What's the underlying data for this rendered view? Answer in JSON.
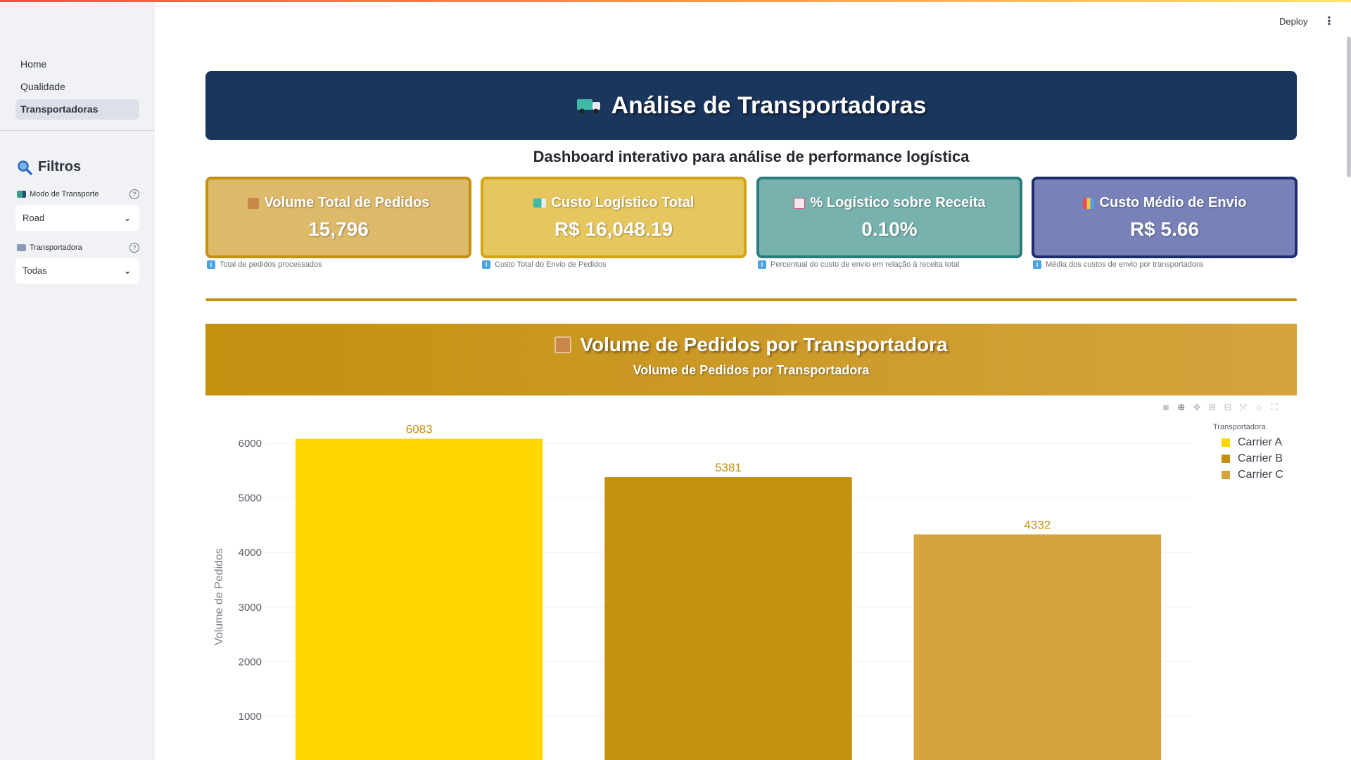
{
  "sidebar": {
    "nav": [
      {
        "label": "Home",
        "active": false
      },
      {
        "label": "Qualidade",
        "active": false
      },
      {
        "label": "Transportadoras",
        "active": true
      }
    ],
    "filters_title": "Filtros",
    "filters": [
      {
        "label": "Modo de Transporte",
        "value": "Road"
      },
      {
        "label": "Transportadora",
        "value": "Todas"
      }
    ]
  },
  "header": {
    "deploy_label": "Deploy"
  },
  "banner": {
    "title": "Análise de Transportadoras"
  },
  "subtitle": "Dashboard interativo para análise de performance logística",
  "kpis": [
    {
      "title": "Volume Total de Pedidos",
      "value": "15,796",
      "note": "Total de pedidos processados",
      "bg": "#ddb96a",
      "border": "#c49010"
    },
    {
      "title": "Custo Logístico Total",
      "value": "R$ 16,048.19",
      "note": "Custo Total do Envio de Pedidos",
      "bg": "#e6c65e",
      "border": "#d4a410"
    },
    {
      "title": "% Logístico sobre Receita",
      "value": "0.10%",
      "note": "Percentual do custo de envio em relação à receita total",
      "bg": "#78b2ae",
      "border": "#2a7d78"
    },
    {
      "title": "Custo Médio de Envio",
      "value": "R$ 5.66",
      "note": "Média dos custos de envio por transportadora",
      "bg": "#7882b8",
      "border": "#1e2d6e"
    }
  ],
  "chart_section": {
    "title": "Volume de Pedidos por Transportadora",
    "subtitle": "Volume de Pedidos por Transportadora"
  },
  "chart_data": {
    "type": "bar",
    "categories": [
      "Carrier A",
      "Carrier B",
      "Carrier C"
    ],
    "values": [
      6083,
      5381,
      4332
    ],
    "colors": [
      "#ffd700",
      "#c49010",
      "#d4a43e"
    ],
    "title": "Volume de Pedidos por Transportadora",
    "xlabel": "",
    "ylabel": "Volume de Pedidos",
    "yticks": [
      1000,
      2000,
      3000,
      4000,
      5000,
      6000
    ],
    "ylim": [
      0,
      6404
    ],
    "legend_title": "Transportadora",
    "legend_position": "top-right",
    "grid": true
  }
}
